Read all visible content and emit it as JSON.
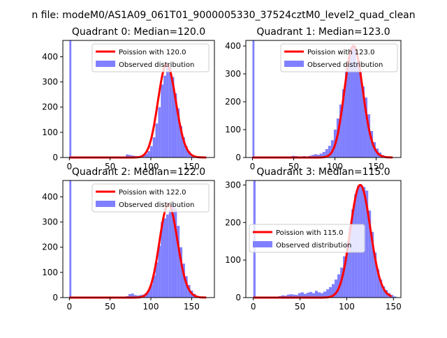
{
  "figure": {
    "suptitle": "n file: modeM0/AS1A09_061T01_9000005330_37524cztM0_level2_quad_clean"
  },
  "colors": {
    "poisson": "#ff0000",
    "observed": "#8080ff"
  },
  "chart_data": [
    {
      "type": "bar",
      "title": "Quadrant 0: Median=120.0",
      "median": 120.0,
      "xlim": [
        -8,
        178
      ],
      "ylim": [
        0,
        465
      ],
      "xticks": [
        0,
        50,
        100,
        150
      ],
      "yticks": [
        0,
        100,
        200,
        300,
        400
      ],
      "legend_position": "upper right",
      "series": [
        {
          "name": "Poission with 120.0",
          "kind": "line"
        },
        {
          "name": "Observed distribution",
          "kind": "histogram",
          "bin_width": 3.3,
          "bins": [
            [
              0,
              465
            ],
            [
              69.3,
              12
            ],
            [
              72.6,
              10
            ],
            [
              75.9,
              8
            ],
            [
              79.2,
              6
            ],
            [
              82.5,
              5
            ],
            [
              85.8,
              6
            ],
            [
              89.1,
              10
            ],
            [
              92.4,
              14
            ],
            [
              95.7,
              25
            ],
            [
              99,
              45
            ],
            [
              102.3,
              80
            ],
            [
              105.6,
              135
            ],
            [
              108.9,
              200
            ],
            [
              112.2,
              290
            ],
            [
              115.5,
              325
            ],
            [
              118.8,
              370
            ],
            [
              122.1,
              360
            ],
            [
              125.4,
              320
            ],
            [
              128.7,
              255
            ],
            [
              132,
              195
            ],
            [
              135.3,
              125
            ],
            [
              138.6,
              80
            ],
            [
              141.9,
              45
            ],
            [
              145.2,
              25
            ],
            [
              148.5,
              12
            ],
            [
              151.8,
              6
            ],
            [
              155.1,
              3
            ]
          ]
        }
      ]
    },
    {
      "type": "bar",
      "title": "Quadrant 1: Median=123.0",
      "median": 123.0,
      "xlim": [
        -8,
        180
      ],
      "ylim": [
        0,
        420
      ],
      "xticks": [
        0,
        50,
        100,
        150
      ],
      "yticks": [
        0,
        100,
        200,
        300,
        400
      ],
      "legend_position": "upper right",
      "series": [
        {
          "name": "Poission with 123.0",
          "kind": "line"
        },
        {
          "name": "Observed distribution",
          "kind": "histogram",
          "bin_width": 3.4,
          "bins": [
            [
              0,
              420
            ],
            [
              47.6,
              6
            ],
            [
              51,
              5
            ],
            [
              54.4,
              4
            ],
            [
              57.8,
              3
            ],
            [
              61.2,
              5
            ],
            [
              64.6,
              3
            ],
            [
              68,
              6
            ],
            [
              71.4,
              9
            ],
            [
              74.8,
              12
            ],
            [
              78.2,
              10
            ],
            [
              81.6,
              14
            ],
            [
              85,
              20
            ],
            [
              88.4,
              30
            ],
            [
              91.8,
              42
            ],
            [
              95.2,
              62
            ],
            [
              98.6,
              100
            ],
            [
              102,
              140
            ],
            [
              105.4,
              190
            ],
            [
              108.8,
              245
            ],
            [
              112.2,
              310
            ],
            [
              115.6,
              360
            ],
            [
              119,
              395
            ],
            [
              122.4,
              400
            ],
            [
              125.8,
              345
            ],
            [
              129.2,
              305
            ],
            [
              132.6,
              255
            ],
            [
              136,
              215
            ],
            [
              139.4,
              155
            ],
            [
              142.8,
              95
            ],
            [
              146.2,
              55
            ],
            [
              149.6,
              32
            ],
            [
              153,
              18
            ],
            [
              156.4,
              9
            ],
            [
              159.8,
              4
            ]
          ]
        }
      ]
    },
    {
      "type": "bar",
      "title": "Quadrant 2: Median=122.0",
      "median": 122.0,
      "xlim": [
        -8,
        178
      ],
      "ylim": [
        0,
        465
      ],
      "xticks": [
        0,
        50,
        100,
        150
      ],
      "yticks": [
        0,
        100,
        200,
        300,
        400
      ],
      "legend_position": "upper right",
      "series": [
        {
          "name": "Poission with 122.0",
          "kind": "line"
        },
        {
          "name": "Observed distribution",
          "kind": "histogram",
          "bin_width": 3.3,
          "bins": [
            [
              0,
              465
            ],
            [
              69.3,
              6
            ],
            [
              72.6,
              14
            ],
            [
              75.9,
              16
            ],
            [
              79.2,
              10
            ],
            [
              82.5,
              8
            ],
            [
              85.8,
              10
            ],
            [
              89.1,
              12
            ],
            [
              92.4,
              18
            ],
            [
              95.7,
              30
            ],
            [
              99,
              52
            ],
            [
              102.3,
              88
            ],
            [
              105.6,
              140
            ],
            [
              108.9,
              205
            ],
            [
              112.2,
              300
            ],
            [
              115.5,
              315
            ],
            [
              118.8,
              330
            ],
            [
              122.1,
              350
            ],
            [
              125.4,
              370
            ],
            [
              128.7,
              355
            ],
            [
              132,
              285
            ],
            [
              135.3,
              200
            ],
            [
              138.6,
              135
            ],
            [
              141.9,
              85
            ],
            [
              145.2,
              50
            ],
            [
              148.5,
              28
            ],
            [
              151.8,
              15
            ],
            [
              155.1,
              6
            ]
          ]
        }
      ]
    },
    {
      "type": "bar",
      "title": "Quadrant 3: Median=115.0",
      "median": 115.0,
      "xlim": [
        -8,
        158
      ],
      "ylim": [
        0,
        312
      ],
      "xticks": [
        0,
        50,
        100,
        150
      ],
      "yticks": [
        0,
        100,
        200,
        300
      ],
      "legend_position": "center left",
      "series": [
        {
          "name": "Poission with 115.0",
          "kind": "line"
        },
        {
          "name": "Observed distribution",
          "kind": "histogram",
          "bin_width": 3.0,
          "bins": [
            [
              0,
              312
            ],
            [
              27,
              4
            ],
            [
              30,
              6
            ],
            [
              33,
              5
            ],
            [
              36,
              8
            ],
            [
              39,
              9
            ],
            [
              42,
              8
            ],
            [
              45,
              7
            ],
            [
              48,
              12
            ],
            [
              51,
              14
            ],
            [
              54,
              10
            ],
            [
              57,
              13
            ],
            [
              60,
              15
            ],
            [
              63,
              12
            ],
            [
              66,
              18
            ],
            [
              69,
              14
            ],
            [
              72,
              12
            ],
            [
              75,
              16
            ],
            [
              78,
              22
            ],
            [
              81,
              28
            ],
            [
              84,
              36
            ],
            [
              87,
              48
            ],
            [
              90,
              62
            ],
            [
              93,
              80
            ],
            [
              96,
              110
            ],
            [
              99,
              148
            ],
            [
              102,
              190
            ],
            [
              105,
              235
            ],
            [
              108,
              275
            ],
            [
              111,
              298
            ],
            [
              114,
              300
            ],
            [
              117,
              295
            ],
            [
              120,
              285
            ],
            [
              123,
              232
            ],
            [
              126,
              175
            ],
            [
              129,
              120
            ],
            [
              132,
              75
            ],
            [
              135,
              48
            ],
            [
              138,
              30
            ],
            [
              141,
              20
            ],
            [
              144,
              12
            ],
            [
              147,
              7
            ],
            [
              150,
              3
            ]
          ]
        }
      ]
    }
  ]
}
